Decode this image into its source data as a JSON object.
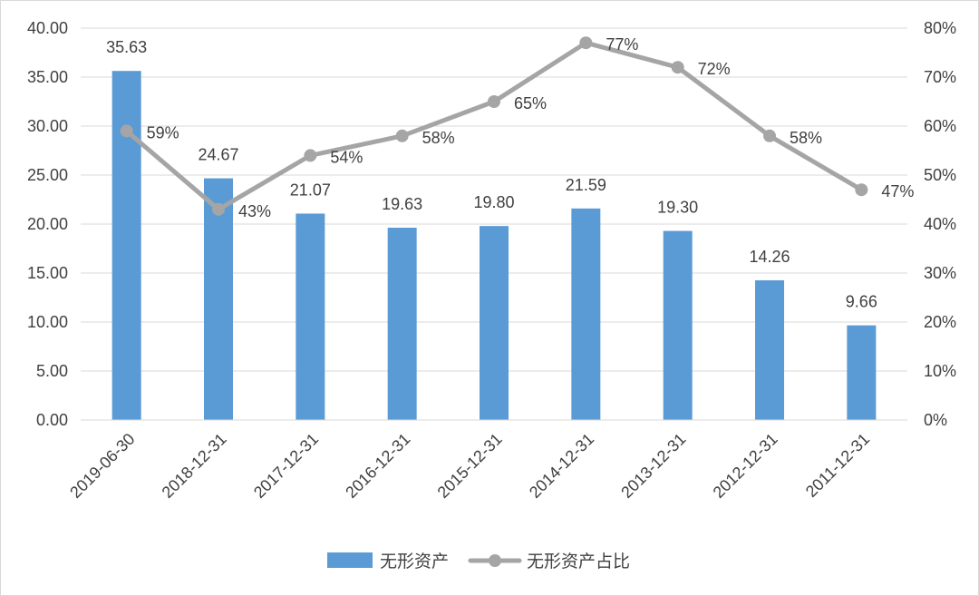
{
  "chart_data": {
    "type": "bar",
    "categories": [
      "2019-06-30",
      "2018-12-31",
      "2017-12-31",
      "2016-12-31",
      "2015-12-31",
      "2014-12-31",
      "2013-12-31",
      "2012-12-31",
      "2011-12-31"
    ],
    "series": [
      {
        "name": "无形资产",
        "type": "bar",
        "axis": "left",
        "values": [
          35.63,
          24.67,
          21.07,
          19.63,
          19.8,
          21.59,
          19.3,
          14.26,
          9.66
        ],
        "labels": [
          "35.63",
          "24.67",
          "21.07",
          "19.63",
          "19.80",
          "21.59",
          "19.30",
          "14.26",
          "9.66"
        ],
        "color": "#5b9bd5"
      },
      {
        "name": "无形资产占比",
        "type": "line",
        "axis": "right",
        "values": [
          0.59,
          0.43,
          0.54,
          0.58,
          0.65,
          0.77,
          0.72,
          0.58,
          0.47
        ],
        "labels": [
          "59%",
          "43%",
          "54%",
          "58%",
          "65%",
          "77%",
          "72%",
          "58%",
          "47%"
        ],
        "color": "#a5a5a5"
      }
    ],
    "y_left": {
      "ylim": [
        0,
        40
      ],
      "ticks": [
        "0.00",
        "5.00",
        "10.00",
        "15.00",
        "20.00",
        "25.00",
        "30.00",
        "35.00",
        "40.00"
      ]
    },
    "y_right": {
      "ylim": [
        0,
        0.8
      ],
      "ticks": [
        "0%",
        "10%",
        "20%",
        "30%",
        "40%",
        "50%",
        "60%",
        "70%",
        "80%"
      ]
    },
    "grid": true,
    "legend": "bottom-center",
    "title": "",
    "xlabel": "",
    "ylabel": ""
  }
}
